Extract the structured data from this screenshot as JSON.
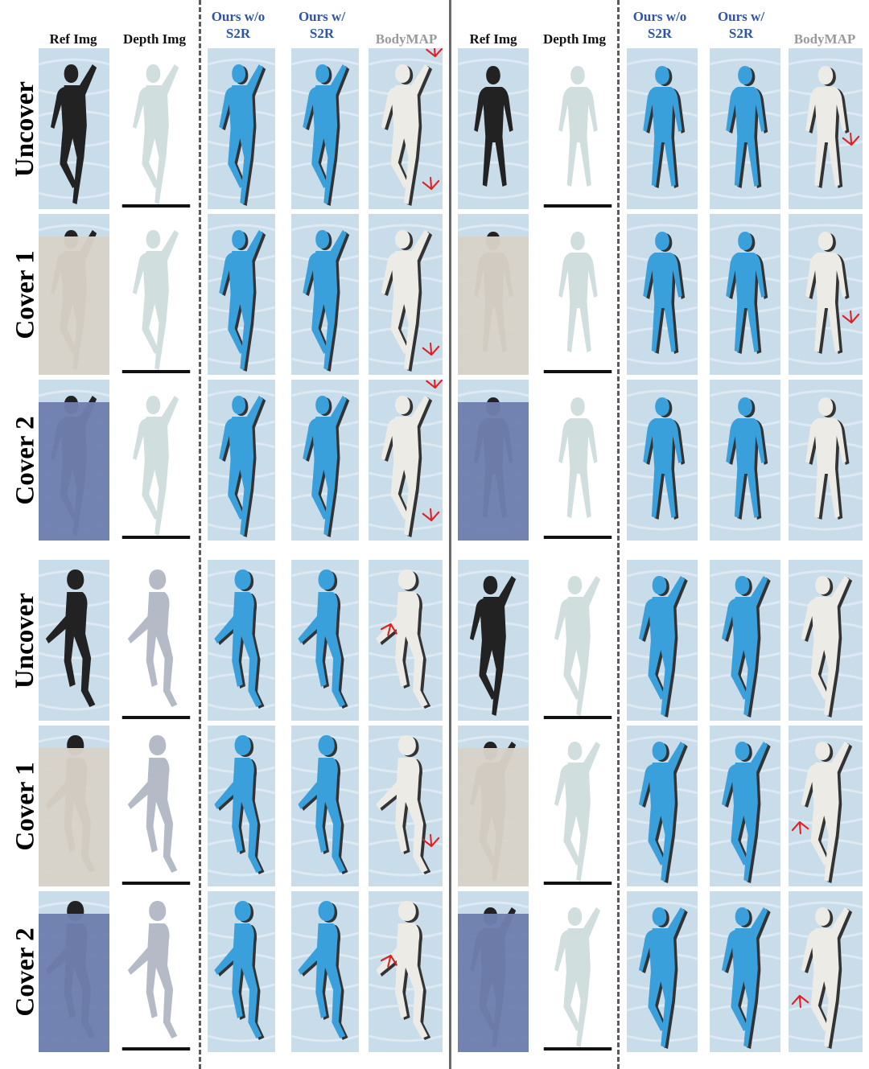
{
  "left_panel": {
    "columns": [
      "Ref Img",
      "Depth Img",
      "Ours w/o\nS2R",
      "Ours w/\nS2R",
      "BodyMAP"
    ]
  },
  "right_panel": {
    "columns": [
      "Ref Img",
      "Depth Img",
      "Ours w/o\nS2R",
      "Ours w/\nS2R",
      "BodyMAP"
    ]
  },
  "rows": {
    "top": [
      "Uncover",
      "Cover 1",
      "Cover 2"
    ],
    "bottom": [
      "Uncover",
      "Cover 1",
      "Cover 2"
    ]
  },
  "colors": {
    "ours_mesh": "#3aa0dc",
    "bodymap_mesh": "#ecebe6",
    "ours_header": "#2f55a4",
    "bodymap_header": "#9a9a9a",
    "arrow": "#e02020",
    "bed_sheet": "#c9dcea",
    "cover_light": "#d8d2c8",
    "cover_blue": "#6f7fae"
  },
  "icons": {
    "arrow": "red-arrow-icon"
  }
}
